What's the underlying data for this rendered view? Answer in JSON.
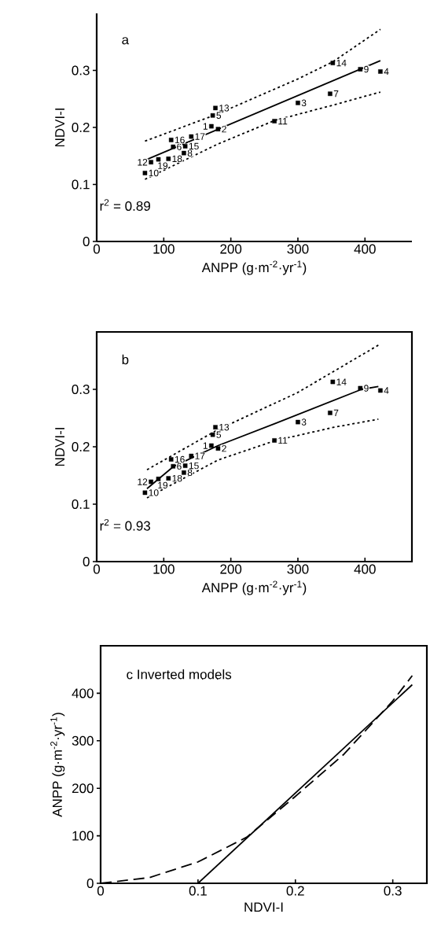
{
  "chart_data": [
    {
      "type": "scatter",
      "title": "a",
      "xlabel": "ANPP (g·m$^{-2}$·yr$^{-1}$)",
      "ylabel": "NDVI-I",
      "xlim": [
        0,
        470
      ],
      "ylim": [
        0,
        0.4
      ],
      "xticks": [
        0,
        100,
        200,
        300,
        400
      ],
      "yticks": [
        0,
        0.1,
        0.2,
        0.3
      ],
      "series": [
        {
          "marker": "square",
          "color": "#000000",
          "x": [
            171,
            181,
            300,
            423,
            173,
            114,
            348,
            130,
            393,
            72,
            265,
            81,
            177,
            352,
            132,
            111,
            141,
            107,
            92
          ],
          "values": [
            0.202,
            0.197,
            0.243,
            0.298,
            0.221,
            0.166,
            0.259,
            0.155,
            0.302,
            0.12,
            0.211,
            0.139,
            0.234,
            0.313,
            0.167,
            0.178,
            0.184,
            0.145,
            0.144
          ]
        },
        {
          "type": "line",
          "line_style": "solid",
          "color": "#000000",
          "x": [
            73,
            423
          ],
          "values": [
            0.143,
            0.317
          ]
        },
        {
          "type": "line",
          "line_style": "dotted",
          "color": "#000000",
          "x": [
            72,
            177,
            300,
            352,
            423
          ],
          "values": [
            0.176,
            0.222,
            0.285,
            0.315,
            0.372
          ]
        },
        {
          "type": "line",
          "line_style": "dotted",
          "color": "#000000",
          "x": [
            72,
            181,
            265,
            352,
            423
          ],
          "values": [
            0.109,
            0.171,
            0.212,
            0.239,
            0.262
          ]
        }
      ],
      "annotations": [
        {
          "text": "1",
          "x": 171,
          "y": 0.202
        },
        {
          "text": "2",
          "x": 181,
          "y": 0.197
        },
        {
          "text": "3",
          "x": 300,
          "y": 0.243
        },
        {
          "text": "4",
          "x": 423,
          "y": 0.298
        },
        {
          "text": "5",
          "x": 173,
          "y": 0.221
        },
        {
          "text": "6",
          "x": 114,
          "y": 0.166
        },
        {
          "text": "7",
          "x": 348,
          "y": 0.259
        },
        {
          "text": "8",
          "x": 130,
          "y": 0.155
        },
        {
          "text": "9",
          "x": 393,
          "y": 0.302
        },
        {
          "text": "10",
          "x": 72,
          "y": 0.12
        },
        {
          "text": "11",
          "x": 265,
          "y": 0.211
        },
        {
          "text": "12",
          "x": 81,
          "y": 0.139
        },
        {
          "text": "13",
          "x": 177,
          "y": 0.234
        },
        {
          "text": "14",
          "x": 352,
          "y": 0.313
        },
        {
          "text": "15",
          "x": 132,
          "y": 0.167
        },
        {
          "text": "16",
          "x": 111,
          "y": 0.178
        },
        {
          "text": "17",
          "x": 141,
          "y": 0.184
        },
        {
          "text": "18",
          "x": 107,
          "y": 0.145
        },
        {
          "text": "19",
          "x": 92,
          "y": 0.144
        },
        "r$^{2}$ = 0.89"
      ]
    },
    {
      "type": "scatter",
      "title": "b",
      "xlabel": "ANPP (g·m$^{-2}$·yr$^{-1}$)",
      "ylabel": "NDVI-I",
      "xlim": [
        0,
        470
      ],
      "ylim": [
        0,
        0.4
      ],
      "xticks": [
        0,
        100,
        200,
        300,
        400
      ],
      "yticks": [
        0,
        0.1,
        0.2,
        0.3
      ],
      "series": [
        {
          "marker": "square",
          "color": "#000000",
          "x": [
            171,
            181,
            300,
            423,
            173,
            114,
            348,
            130,
            393,
            72,
            265,
            81,
            177,
            352,
            132,
            111,
            141,
            107,
            92
          ],
          "values": [
            0.202,
            0.197,
            0.243,
            0.298,
            0.221,
            0.166,
            0.259,
            0.155,
            0.302,
            0.12,
            0.211,
            0.139,
            0.234,
            0.313,
            0.167,
            0.178,
            0.184,
            0.145,
            0.144
          ]
        },
        {
          "type": "line",
          "line_style": "solid",
          "color": "#000000",
          "x": [
            75,
            115,
            181,
            267,
            395,
            420
          ],
          "values": [
            0.127,
            0.166,
            0.202,
            0.241,
            0.3,
            0.305
          ]
        },
        {
          "type": "line",
          "line_style": "dotted",
          "color": "#000000",
          "x": [
            75,
            181,
            299,
            423
          ],
          "values": [
            0.16,
            0.23,
            0.294,
            0.379
          ]
        },
        {
          "type": "line",
          "line_style": "dotted",
          "color": "#000000",
          "x": [
            75,
            181,
            267,
            354,
            420
          ],
          "values": [
            0.111,
            0.177,
            0.211,
            0.234,
            0.248
          ]
        }
      ],
      "annotations": [
        {
          "text": "1",
          "x": 171,
          "y": 0.202
        },
        {
          "text": "2",
          "x": 181,
          "y": 0.197
        },
        {
          "text": "3",
          "x": 300,
          "y": 0.243
        },
        {
          "text": "4",
          "x": 423,
          "y": 0.298
        },
        {
          "text": "5",
          "x": 173,
          "y": 0.221
        },
        {
          "text": "6",
          "x": 114,
          "y": 0.166
        },
        {
          "text": "7",
          "x": 348,
          "y": 0.259
        },
        {
          "text": "8",
          "x": 130,
          "y": 0.155
        },
        {
          "text": "9",
          "x": 393,
          "y": 0.302
        },
        {
          "text": "10",
          "x": 72,
          "y": 0.12
        },
        {
          "text": "11",
          "x": 265,
          "y": 0.211
        },
        {
          "text": "12",
          "x": 81,
          "y": 0.139
        },
        {
          "text": "13",
          "x": 177,
          "y": 0.234
        },
        {
          "text": "14",
          "x": 352,
          "y": 0.313
        },
        {
          "text": "15",
          "x": 132,
          "y": 0.167
        },
        {
          "text": "16",
          "x": 111,
          "y": 0.178
        },
        {
          "text": "17",
          "x": 141,
          "y": 0.184
        },
        {
          "text": "18",
          "x": 107,
          "y": 0.145
        },
        {
          "text": "19",
          "x": 92,
          "y": 0.144
        },
        "r$^{2}$ = 0.93"
      ]
    },
    {
      "type": "line",
      "title": "c Inverted models",
      "xlabel": "NDVI-I",
      "ylabel": "ANPP (g·m$^{-2}$·yr$^{-1}$)",
      "xlim": [
        0,
        0.335
      ],
      "ylim": [
        0,
        500
      ],
      "xticks": [
        0,
        0.1,
        0.2,
        0.3
      ],
      "yticks": [
        0,
        100,
        200,
        300,
        400
      ],
      "series": [
        {
          "line_style": "solid",
          "color": "#000000",
          "x": [
            0.1,
            0.32
          ],
          "values": [
            0,
            418
          ]
        },
        {
          "line_style": "dashed",
          "color": "#000000",
          "x": [
            0,
            0.05,
            0.1,
            0.15,
            0.2,
            0.25,
            0.3,
            0.32
          ],
          "values": [
            0,
            12,
            45,
            97,
            183,
            272,
            384,
            437
          ]
        }
      ]
    }
  ]
}
